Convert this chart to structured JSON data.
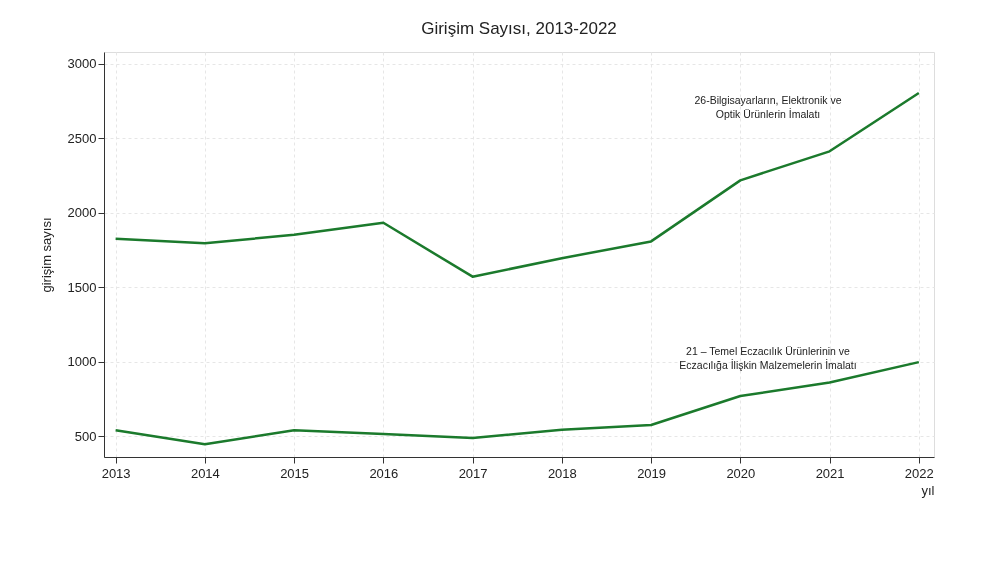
{
  "chart_data": {
    "type": "line",
    "title": "Girişim Sayısı, 2013-2022",
    "xlabel": "yıl",
    "ylabel": "girişim sayısı",
    "x": [
      2013,
      2014,
      2015,
      2016,
      2017,
      2018,
      2019,
      2020,
      2021,
      2022
    ],
    "series": [
      {
        "name": "26-Bilgisayarların, Elektronik ve\nOptik Ürünlerin İmalatı",
        "color": "#1b7a2c",
        "values": [
          1825,
          1795,
          1853,
          1933,
          1571,
          1695,
          1808,
          2218,
          2413,
          2805
        ]
      },
      {
        "name": "21 – Temel Eczacılık Ürünlerinin ve\nEczacılığa İlişkin Malzemelerin İmalatı",
        "color": "#1b7a2c",
        "values": [
          540,
          445,
          540,
          515,
          488,
          543,
          575,
          770,
          860,
          997
        ]
      }
    ],
    "xlim": [
      2012.87,
      2022.17
    ],
    "xticks": [
      2013,
      2014,
      2015,
      2016,
      2017,
      2018,
      2019,
      2020,
      2021,
      2022
    ],
    "ylim": [
      360,
      3080
    ],
    "yticks": [
      500,
      1000,
      1500,
      2000,
      2500,
      3000
    ],
    "grid": true,
    "legend": false,
    "line_style": "solid",
    "marker": "none"
  }
}
